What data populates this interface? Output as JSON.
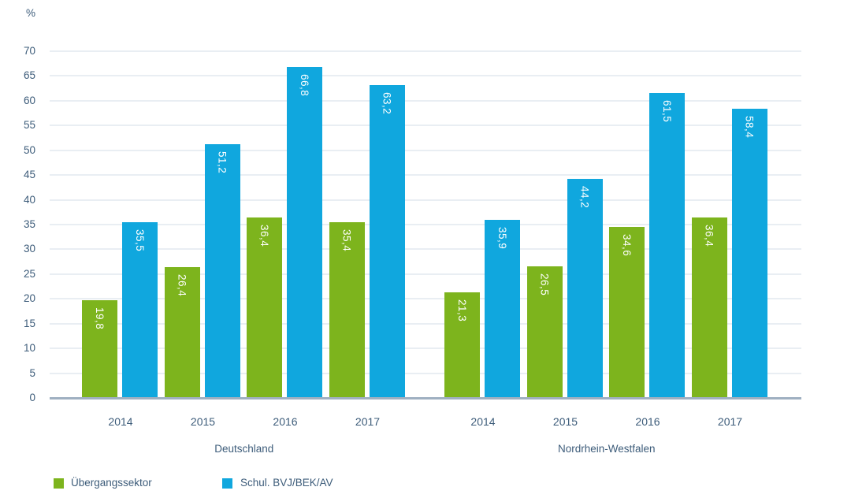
{
  "chart_data": {
    "type": "bar",
    "title": "",
    "ylabel": "%",
    "ylim": [
      0,
      70
    ],
    "ytick_step": 5,
    "grid": true,
    "decimal_separator": ",",
    "categories": [
      "2014",
      "2015",
      "2016",
      "2017"
    ],
    "groups": [
      {
        "label": "Deutschland"
      },
      {
        "label": "Nordrhein-Westfalen"
      }
    ],
    "series": [
      {
        "name": "Übergangssektor",
        "color": "#7db41d",
        "values": [
          [
            19.8,
            26.4,
            36.4,
            35.4
          ],
          [
            21.3,
            26.5,
            34.6,
            36.4
          ]
        ]
      },
      {
        "name": "Schul. BVJ/BEK/AV",
        "color": "#10a7de",
        "values": [
          [
            35.5,
            51.2,
            66.8,
            63.2
          ],
          [
            35.9,
            44.2,
            61.5,
            58.4
          ]
        ]
      }
    ],
    "legend_position": "bottom-left"
  },
  "legend": {
    "items": [
      {
        "label": "Übergangssektor",
        "color": "#7db41d"
      },
      {
        "label": "Schul. BVJ/BEK/AV",
        "color": "#10a7de"
      }
    ]
  }
}
